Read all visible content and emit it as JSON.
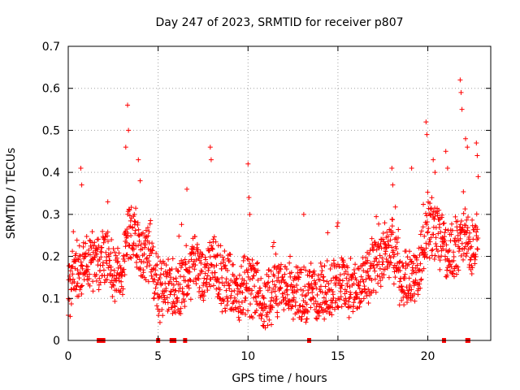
{
  "chart_data": {
    "type": "scatter",
    "title": "Day 247 of 2023, SRMTID for receiver p807",
    "xlabel": "GPS time / hours",
    "ylabel": "SRMTID / TECUs",
    "xlim": [
      0,
      23.5
    ],
    "ylim": [
      0,
      0.7
    ],
    "xticks": [
      0,
      5,
      10,
      15,
      20
    ],
    "xtick_labels": [
      "0",
      "5",
      "10",
      "15",
      "20"
    ],
    "yticks": [
      0,
      0.1,
      0.2,
      0.3,
      0.4,
      0.5,
      0.6,
      0.7
    ],
    "ytick_labels": [
      "0",
      "0.1",
      "0.2",
      "0.3",
      "0.4",
      "0.5",
      "0.6",
      "0.7"
    ],
    "grid": true,
    "marker": "plus",
    "series_color": "#ff0000",
    "trend": {
      "x": [
        0,
        0.5,
        1,
        1.5,
        2,
        2.5,
        3,
        3.3,
        3.6,
        4,
        4.5,
        5,
        5.5,
        6,
        6.5,
        7,
        7.5,
        8,
        8.5,
        9,
        9.5,
        10,
        10.5,
        11,
        11.5,
        12,
        12.5,
        13,
        13.5,
        14,
        14.5,
        15,
        15.5,
        16,
        16.5,
        17,
        17.5,
        18,
        18.5,
        19,
        19.5,
        20,
        20.5,
        21,
        21.5,
        22,
        22.5,
        22.8
      ],
      "y": [
        0.12,
        0.17,
        0.19,
        0.18,
        0.2,
        0.17,
        0.14,
        0.27,
        0.26,
        0.2,
        0.22,
        0.11,
        0.13,
        0.12,
        0.15,
        0.18,
        0.15,
        0.19,
        0.14,
        0.13,
        0.11,
        0.13,
        0.12,
        0.09,
        0.12,
        0.13,
        0.11,
        0.1,
        0.12,
        0.11,
        0.12,
        0.14,
        0.13,
        0.12,
        0.14,
        0.18,
        0.2,
        0.23,
        0.14,
        0.14,
        0.17,
        0.27,
        0.26,
        0.21,
        0.22,
        0.24,
        0.22,
        0.25
      ]
    },
    "spikes": [
      {
        "x": 0.7,
        "y": 0.41
      },
      {
        "x": 0.75,
        "y": 0.37
      },
      {
        "x": 2.2,
        "y": 0.33
      },
      {
        "x": 3.3,
        "y": 0.56
      },
      {
        "x": 3.35,
        "y": 0.5
      },
      {
        "x": 3.2,
        "y": 0.46
      },
      {
        "x": 3.9,
        "y": 0.43
      },
      {
        "x": 4.0,
        "y": 0.38
      },
      {
        "x": 6.6,
        "y": 0.36
      },
      {
        "x": 7.9,
        "y": 0.46
      },
      {
        "x": 7.95,
        "y": 0.43
      },
      {
        "x": 10.0,
        "y": 0.42
      },
      {
        "x": 10.05,
        "y": 0.34
      },
      {
        "x": 10.1,
        "y": 0.3
      },
      {
        "x": 13.1,
        "y": 0.3
      },
      {
        "x": 15.0,
        "y": 0.28
      },
      {
        "x": 18.0,
        "y": 0.41
      },
      {
        "x": 18.05,
        "y": 0.37
      },
      {
        "x": 19.1,
        "y": 0.41
      },
      {
        "x": 19.9,
        "y": 0.52
      },
      {
        "x": 19.95,
        "y": 0.49
      },
      {
        "x": 20.3,
        "y": 0.43
      },
      {
        "x": 20.4,
        "y": 0.4
      },
      {
        "x": 21.0,
        "y": 0.45
      },
      {
        "x": 21.1,
        "y": 0.41
      },
      {
        "x": 21.8,
        "y": 0.62
      },
      {
        "x": 21.85,
        "y": 0.59
      },
      {
        "x": 21.9,
        "y": 0.55
      },
      {
        "x": 22.1,
        "y": 0.48
      },
      {
        "x": 22.2,
        "y": 0.46
      },
      {
        "x": 22.7,
        "y": 0.47
      },
      {
        "x": 22.75,
        "y": 0.44
      },
      {
        "x": 22.8,
        "y": 0.39
      }
    ],
    "zero_markers": [
      1.7,
      1.9,
      1.95,
      5.0,
      5.75,
      5.8,
      5.85,
      5.9,
      6.5,
      13.4,
      20.9,
      22.2,
      22.25
    ]
  }
}
